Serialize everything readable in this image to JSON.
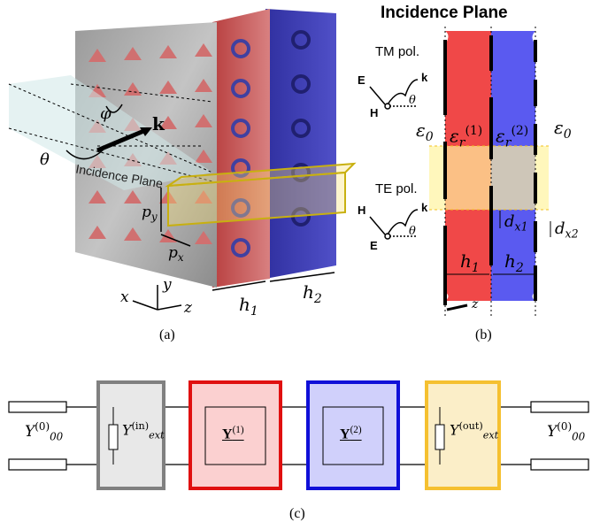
{
  "panel_a": {
    "caption": "(a)",
    "label_k": "k",
    "label_phi": "φ",
    "label_theta": "θ",
    "label_plane": "Incidence Plane",
    "label_py": "p",
    "label_py_sub": "y",
    "label_px": "p",
    "label_px_sub": "x",
    "label_h1": "h",
    "label_h1_sub": "1",
    "label_h2": "h",
    "label_h2_sub": "2",
    "axis_x": "x",
    "axis_y": "y",
    "axis_z": "z"
  },
  "panel_b": {
    "caption": "(b)",
    "title": "Incidence Plane",
    "tm_label": "TM pol.",
    "te_label": "TE pol.",
    "E": "E",
    "H": "H",
    "k": "k",
    "theta": "θ",
    "eps0_left": "ε",
    "eps0_left_sub": "0",
    "eps0_right": "ε",
    "eps0_right_sub": "0",
    "eps_r1": "ε",
    "eps_r1_sub": "r",
    "eps_r1_sup": "(1)",
    "eps_r2": "ε",
    "eps_r2_sub": "r",
    "eps_r2_sup": "(2)",
    "dx1": "d",
    "dx1_sub": "x1",
    "dx2": "d",
    "dx2_sub": "x2",
    "h1": "h",
    "h1_sub": "1",
    "h2": "h",
    "h2_sub": "2",
    "axis_z": "z"
  },
  "panel_c": {
    "caption": "(c)",
    "port_left": "Y",
    "port_left_sub": "00",
    "port_left_sup": "(0)",
    "port_right": "Y",
    "port_right_sub": "00",
    "port_right_sup": "(0)",
    "ext_in": "Y",
    "ext_in_sub": "ext",
    "ext_in_sup": "(in)",
    "y1": "Y",
    "y1_sup": "(1)",
    "y2": "Y",
    "y2_sup": "(2)",
    "ext_out": "Y",
    "ext_out_sub": "ext",
    "ext_out_sup": "(out)"
  },
  "colors": {
    "layer1": "#f04848",
    "layer2": "#5a5af0",
    "plane_yellow": "#fff3a0",
    "box_gray": "#808080",
    "box_red": "#e01010",
    "box_blue": "#1010d8",
    "box_yellow": "#f5c030"
  }
}
